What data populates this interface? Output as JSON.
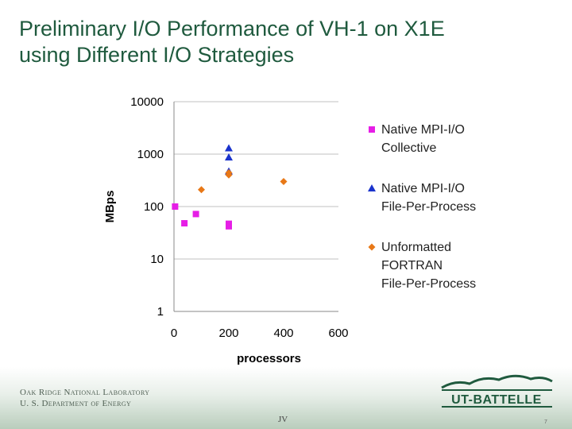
{
  "slide": {
    "title_line1": "Preliminary I/O Performance of VH-1 on X1E",
    "title_line2": "using Different I/O Strategies"
  },
  "footer": {
    "org_line1": "Oak Ridge National Laboratory",
    "org_line2": "U. S. Department of Energy",
    "presenter": "JV",
    "page_number": "7",
    "logo_text": "UT-BATTELLE"
  },
  "colors": {
    "title": "#1f5a3e",
    "series_collective": "#e61ee6",
    "series_fpp": "#1a33cc",
    "series_fortran": "#e87817",
    "grid": "#c0c0c0"
  },
  "chart_data": {
    "type": "scatter",
    "xlabel": "processors",
    "ylabel": "MBps",
    "yscale": "log",
    "xlim": [
      0,
      600
    ],
    "ylim": [
      1,
      10000
    ],
    "x_ticks": [
      "0",
      "200",
      "400",
      "600"
    ],
    "y_ticks": [
      "1",
      "10",
      "100",
      "1000",
      "10000"
    ],
    "grid": "horizontal",
    "legend": "right",
    "series": [
      {
        "name_lines": [
          "Native MPI-I/O",
          "Collective"
        ],
        "marker": "square",
        "color": "#e61ee6",
        "points": [
          [
            4,
            100
          ],
          [
            38,
            48
          ],
          [
            80,
            72
          ],
          [
            200,
            47
          ],
          [
            200,
            42
          ]
        ]
      },
      {
        "name_lines": [
          "Native MPI-I/O",
          "File-Per-Process"
        ],
        "marker": "triangle",
        "color": "#1a33cc",
        "points": [
          [
            200,
            1300
          ],
          [
            200,
            870
          ],
          [
            200,
            470
          ]
        ]
      },
      {
        "name_lines": [
          "Unformatted",
          "FORTRAN",
          "File-Per-Process"
        ],
        "marker": "diamond",
        "color": "#e87817",
        "points": [
          [
            100,
            210
          ],
          [
            200,
            440
          ],
          [
            200,
            400
          ],
          [
            400,
            300
          ]
        ]
      }
    ]
  }
}
